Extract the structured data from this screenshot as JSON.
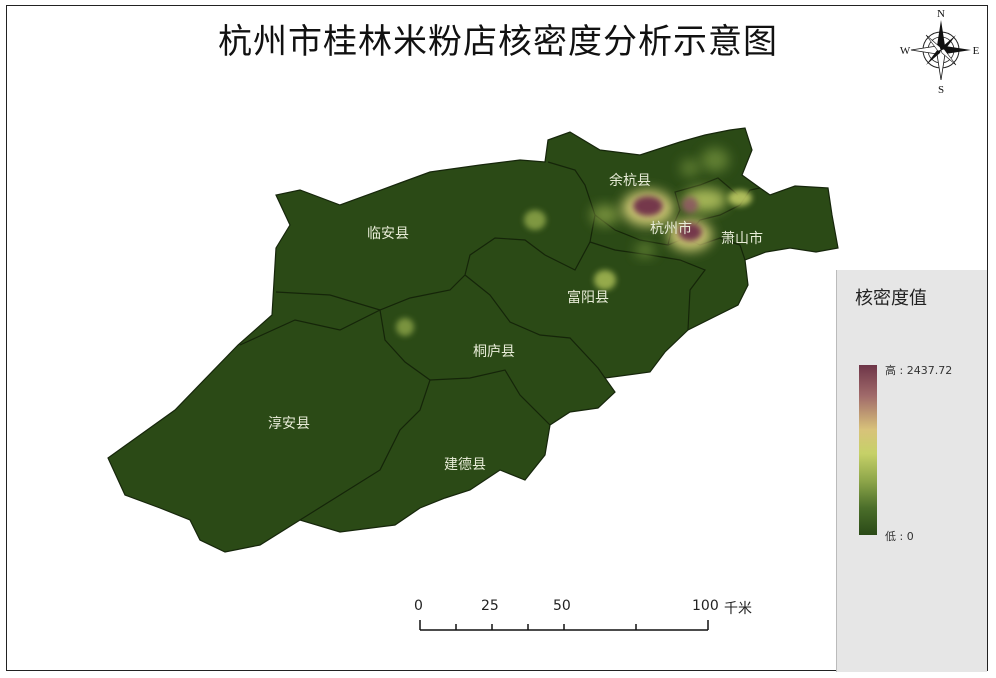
{
  "title": "杭州市桂林米粉店核密度分析示意图",
  "compass": {
    "north": "N",
    "south": "S",
    "east": "E",
    "west": "W"
  },
  "counties": [
    {
      "name": "余杭县"
    },
    {
      "name": "临安县"
    },
    {
      "name": "杭州市"
    },
    {
      "name": "萧山市"
    },
    {
      "name": "富阳县"
    },
    {
      "name": "桐庐县"
    },
    {
      "name": "淳安县"
    },
    {
      "name": "建德县"
    }
  ],
  "legend": {
    "title": "核密度值",
    "high_label": "高 : 2437.72",
    "low_label": "低 : 0",
    "color_high": "#6e3548",
    "color_mid": "#d8d27a",
    "color_low": "#2a4a17"
  },
  "scale_bar": {
    "ticks": [
      "0",
      "25",
      "50",
      "100"
    ],
    "unit": "千米"
  },
  "colors": {
    "land": "#2b4a16",
    "boundary": "#16260b"
  }
}
